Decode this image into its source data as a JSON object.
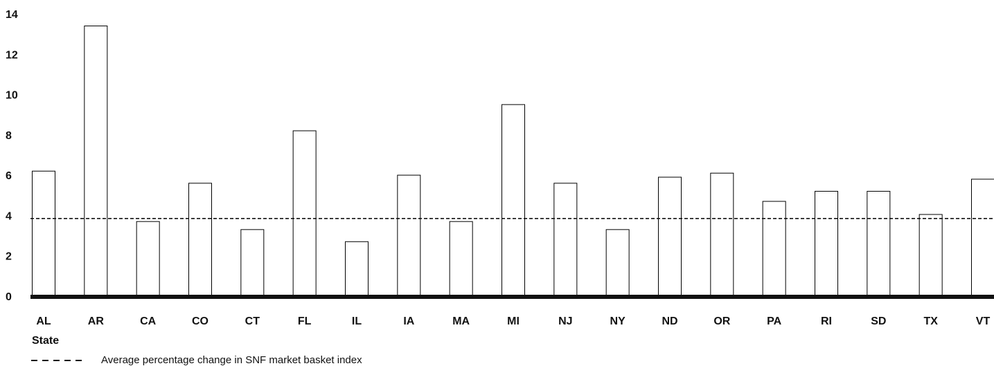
{
  "chart_data": {
    "type": "bar",
    "xlabel": "State",
    "ylabel": "",
    "title": "",
    "ylim": [
      0,
      14
    ],
    "yticks": [
      0,
      2,
      4,
      6,
      8,
      10,
      12,
      14
    ],
    "categories": [
      "AL",
      "AR",
      "CA",
      "CO",
      "CT",
      "FL",
      "IL",
      "IA",
      "MA",
      "MI",
      "NJ",
      "NY",
      "ND",
      "OR",
      "PA",
      "RI",
      "SD",
      "TX",
      "VT"
    ],
    "values": [
      6.2,
      13.4,
      3.7,
      5.6,
      3.3,
      8.2,
      2.7,
      6.0,
      3.7,
      9.5,
      5.6,
      3.3,
      5.9,
      6.1,
      4.7,
      5.2,
      5.2,
      4.05,
      5.8
    ],
    "reference_line": {
      "value": 3.85,
      "style": "dashed",
      "label": "Average percentage change in SNF market basket index"
    },
    "grid": false,
    "legend_position": "bottom-left",
    "bar_fill": "#ffffff",
    "bar_stroke": "#000000"
  }
}
